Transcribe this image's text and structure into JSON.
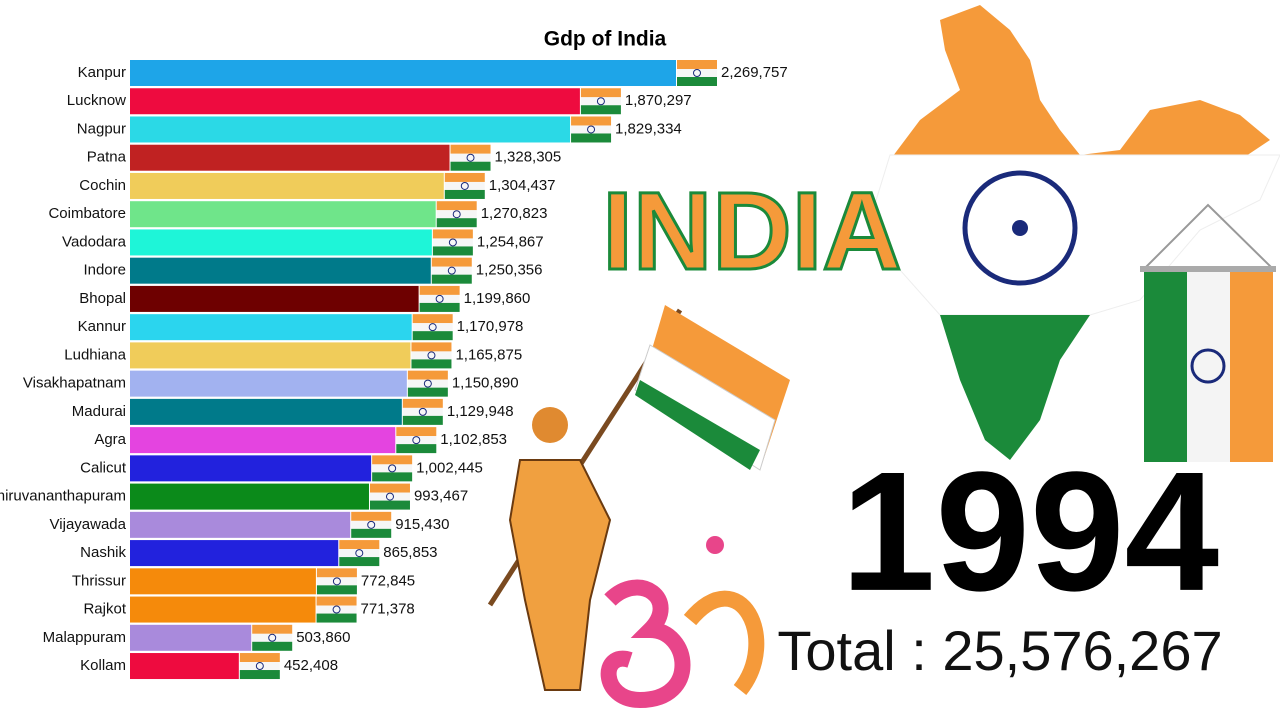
{
  "chart_data": {
    "type": "bar",
    "orientation": "horizontal",
    "title": "Gdp of India",
    "categories": [
      "Kanpur",
      "Lucknow",
      "Nagpur",
      "Patna",
      "Cochin",
      "Coimbatore",
      "Vadodara",
      "Indore",
      "Bhopal",
      "Kannur",
      "Ludhiana",
      "Visakhapatnam",
      "Madurai",
      "Agra",
      "Calicut",
      "Thiruvananthapuram",
      "Vijayawada",
      "Nashik",
      "Thrissur",
      "Rajkot",
      "Malappuram",
      "Kollam"
    ],
    "values": [
      2269757,
      1870297,
      1829334,
      1328305,
      1304437,
      1270823,
      1254867,
      1250356,
      1199860,
      1170978,
      1165875,
      1150890,
      1129948,
      1102853,
      1002445,
      993467,
      915430,
      865853,
      772845,
      771378,
      503860,
      452408
    ],
    "value_labels": [
      "2,269,757",
      "1,870,297",
      "1,829,334",
      "1,328,305",
      "1,304,437",
      "1,270,823",
      "1,254,867",
      "1,250,356",
      "1,199,860",
      "1,170,978",
      "1,165,875",
      "1,150,890",
      "1,129,948",
      "1,102,853",
      "1,002,445",
      "993,467",
      "915,430",
      "865,853",
      "772,845",
      "771,378",
      "503,860",
      "452,408"
    ],
    "colors": [
      "#1ea5e8",
      "#ee0b3f",
      "#2bd9e6",
      "#c02222",
      "#f0cc5a",
      "#6fe58a",
      "#1ef5d8",
      "#007a8a",
      "#6e0000",
      "#2bd5ee",
      "#f0cc5a",
      "#a2b2f0",
      "#007a8a",
      "#e444e0",
      "#2222dd",
      "#0b8a1a",
      "#a98adc",
      "#2222dd",
      "#f58a0b",
      "#f58a0b",
      "#a98adc",
      "#ee0b3f"
    ],
    "banner": "INDIA",
    "year": "1994",
    "total_label": "Total : 25,576,267"
  }
}
